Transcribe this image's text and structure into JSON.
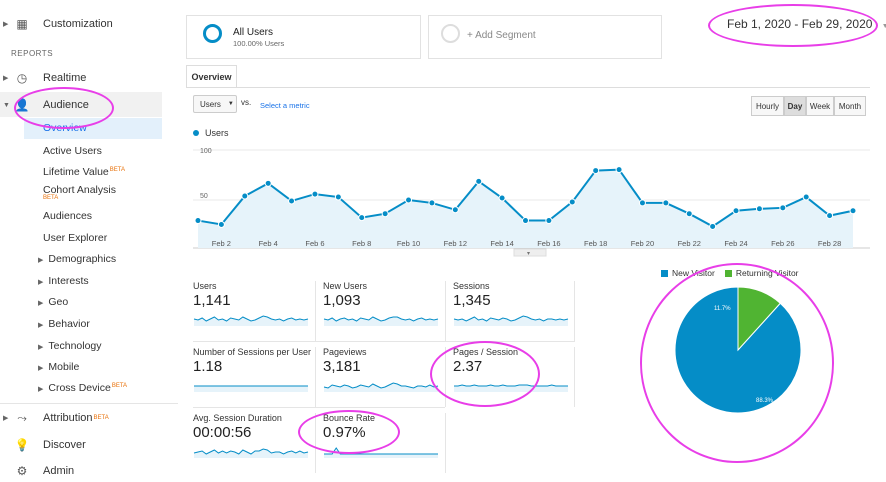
{
  "sidebar": {
    "customization": "Customization",
    "reports_header": "REPORTS",
    "realtime": "Realtime",
    "audience": "Audience",
    "audience_items": [
      "Overview",
      "Active Users",
      "Lifetime Value",
      "Cohort Analysis",
      "Audiences",
      "User Explorer"
    ],
    "beta": "BETA",
    "audience_groups": [
      "Demographics",
      "Interests",
      "Geo",
      "Behavior",
      "Technology",
      "Mobile",
      "Cross Device"
    ],
    "attribution": "Attribution",
    "discover": "Discover",
    "admin": "Admin"
  },
  "segments": {
    "all_users": "All Users",
    "all_users_pct": "100.00% Users",
    "add_segment": "+ Add Segment"
  },
  "date_range": "Feb 1, 2020 - Feb 29, 2020",
  "tab": "Overview",
  "controls": {
    "metric_select": "Users",
    "vs": "vs.",
    "select_metric": "Select a metric",
    "granularity": [
      "Hourly",
      "Day",
      "Week",
      "Month"
    ],
    "active_granularity": "Day"
  },
  "colors": {
    "line": "#058dc7",
    "fill": "#e6f3fa",
    "new_visitor": "#058dc7",
    "returning_visitor": "#50b432",
    "annotation": "#e83ee8"
  },
  "chart_data": {
    "type": "area",
    "series": [
      {
        "name": "Users",
        "values": [
          28,
          24,
          53,
          66,
          48,
          55,
          52,
          31,
          35,
          49,
          46,
          39,
          68,
          51,
          28,
          28,
          47,
          79,
          80,
          46,
          46,
          35,
          22,
          38,
          40,
          41,
          52,
          33,
          38
        ]
      }
    ],
    "x_tick_labels": [
      "Feb 2",
      "Feb 4",
      "Feb 6",
      "Feb 8",
      "Feb 10",
      "Feb 12",
      "Feb 14",
      "Feb 16",
      "Feb 18",
      "Feb 20",
      "Feb 22",
      "Feb 24",
      "Feb 26",
      "Feb 28"
    ],
    "y_tick_labels": [
      "100",
      "50"
    ],
    "ylim": [
      0,
      100
    ],
    "legend": "Users"
  },
  "metrics": [
    {
      "label": "Users",
      "value": "1,141"
    },
    {
      "label": "New Users",
      "value": "1,093"
    },
    {
      "label": "Sessions",
      "value": "1,345"
    },
    {
      "label": "Number of Sessions per User",
      "value": "1.18"
    },
    {
      "label": "Pageviews",
      "value": "3,181"
    },
    {
      "label": "Pages / Session",
      "value": "2.37"
    },
    {
      "label": "Avg. Session Duration",
      "value": "00:00:56"
    },
    {
      "label": "Bounce Rate",
      "value": "0.97%"
    }
  ],
  "pie": {
    "type": "pie",
    "legend": [
      "New Visitor",
      "Returning Visitor"
    ],
    "values": [
      88.3,
      11.7
    ],
    "labels": [
      "88.3%",
      "11.7%"
    ]
  }
}
